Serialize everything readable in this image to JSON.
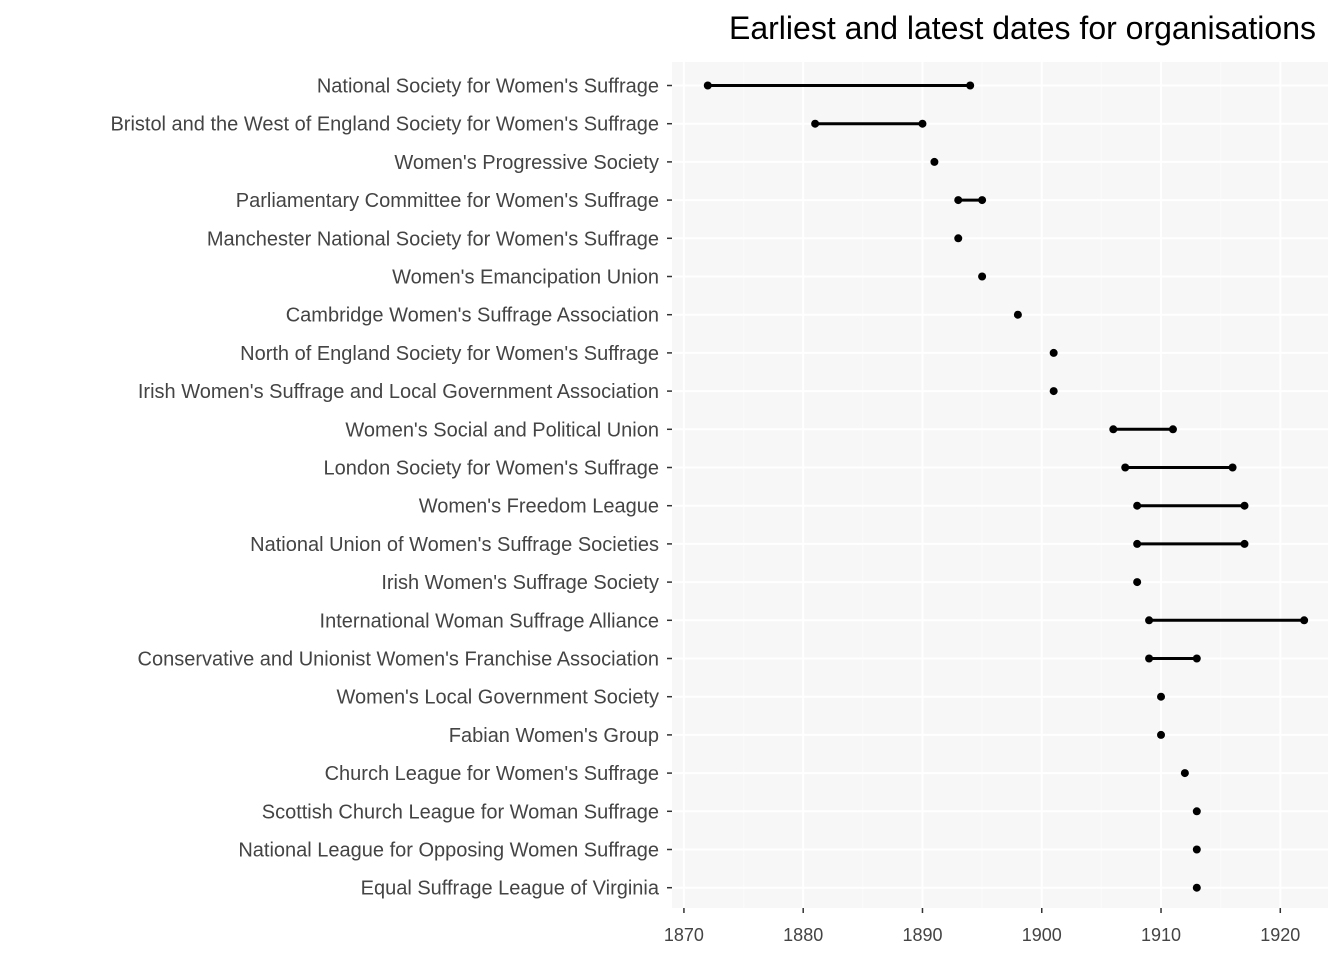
{
  "chart_data": {
    "type": "dumbbell",
    "title": "Earliest and latest dates for organisations",
    "xlabel": "",
    "ylabel": "",
    "xlim": [
      1869,
      1924
    ],
    "x_ticks": [
      1870,
      1880,
      1890,
      1900,
      1910,
      1920
    ],
    "grid": true,
    "legend": "none",
    "categories": [
      "National Society for Women's Suffrage",
      "Bristol and the West of England Society for Women's Suffrage",
      "Women's Progressive Society",
      "Parliamentary Committee for Women's Suffrage",
      "Manchester National Society for Women's Suffrage",
      "Women's Emancipation Union",
      "Cambridge Women's Suffrage Association",
      "North of England Society for Women's Suffrage",
      "Irish Women's Suffrage and Local Government Association",
      "Women's Social and Political Union",
      "London Society for Women's Suffrage",
      "Women's Freedom League",
      "National Union of Women's Suffrage Societies",
      "Irish Women's Suffrage Society",
      "International Woman Suffrage Alliance",
      "Conservative and Unionist Women's Franchise Association",
      "Women's Local Government Society",
      "Fabian Women's Group",
      "Church League for Women's Suffrage",
      "Scottish Church League for Woman Suffrage",
      "National League for Opposing Women Suffrage",
      "Equal Suffrage League of Virginia"
    ],
    "earliest": [
      1872,
      1881,
      1891,
      1893,
      1893,
      1895,
      1898,
      1901,
      1901,
      1906,
      1907,
      1908,
      1908,
      1908,
      1909,
      1909,
      1910,
      1910,
      1912,
      1913,
      1913,
      1913
    ],
    "latest": [
      1894,
      1890,
      1891,
      1895,
      1893,
      1895,
      1898,
      1901,
      1901,
      1911,
      1916,
      1917,
      1917,
      1908,
      1922,
      1913,
      1910,
      1910,
      1912,
      1913,
      1913,
      1913
    ],
    "colors": {
      "panel": "#f7f7f7",
      "grid_major": "#ffffff",
      "grid_minor": "#fbfbfb",
      "mark": "#000000",
      "text": "#444444"
    }
  }
}
